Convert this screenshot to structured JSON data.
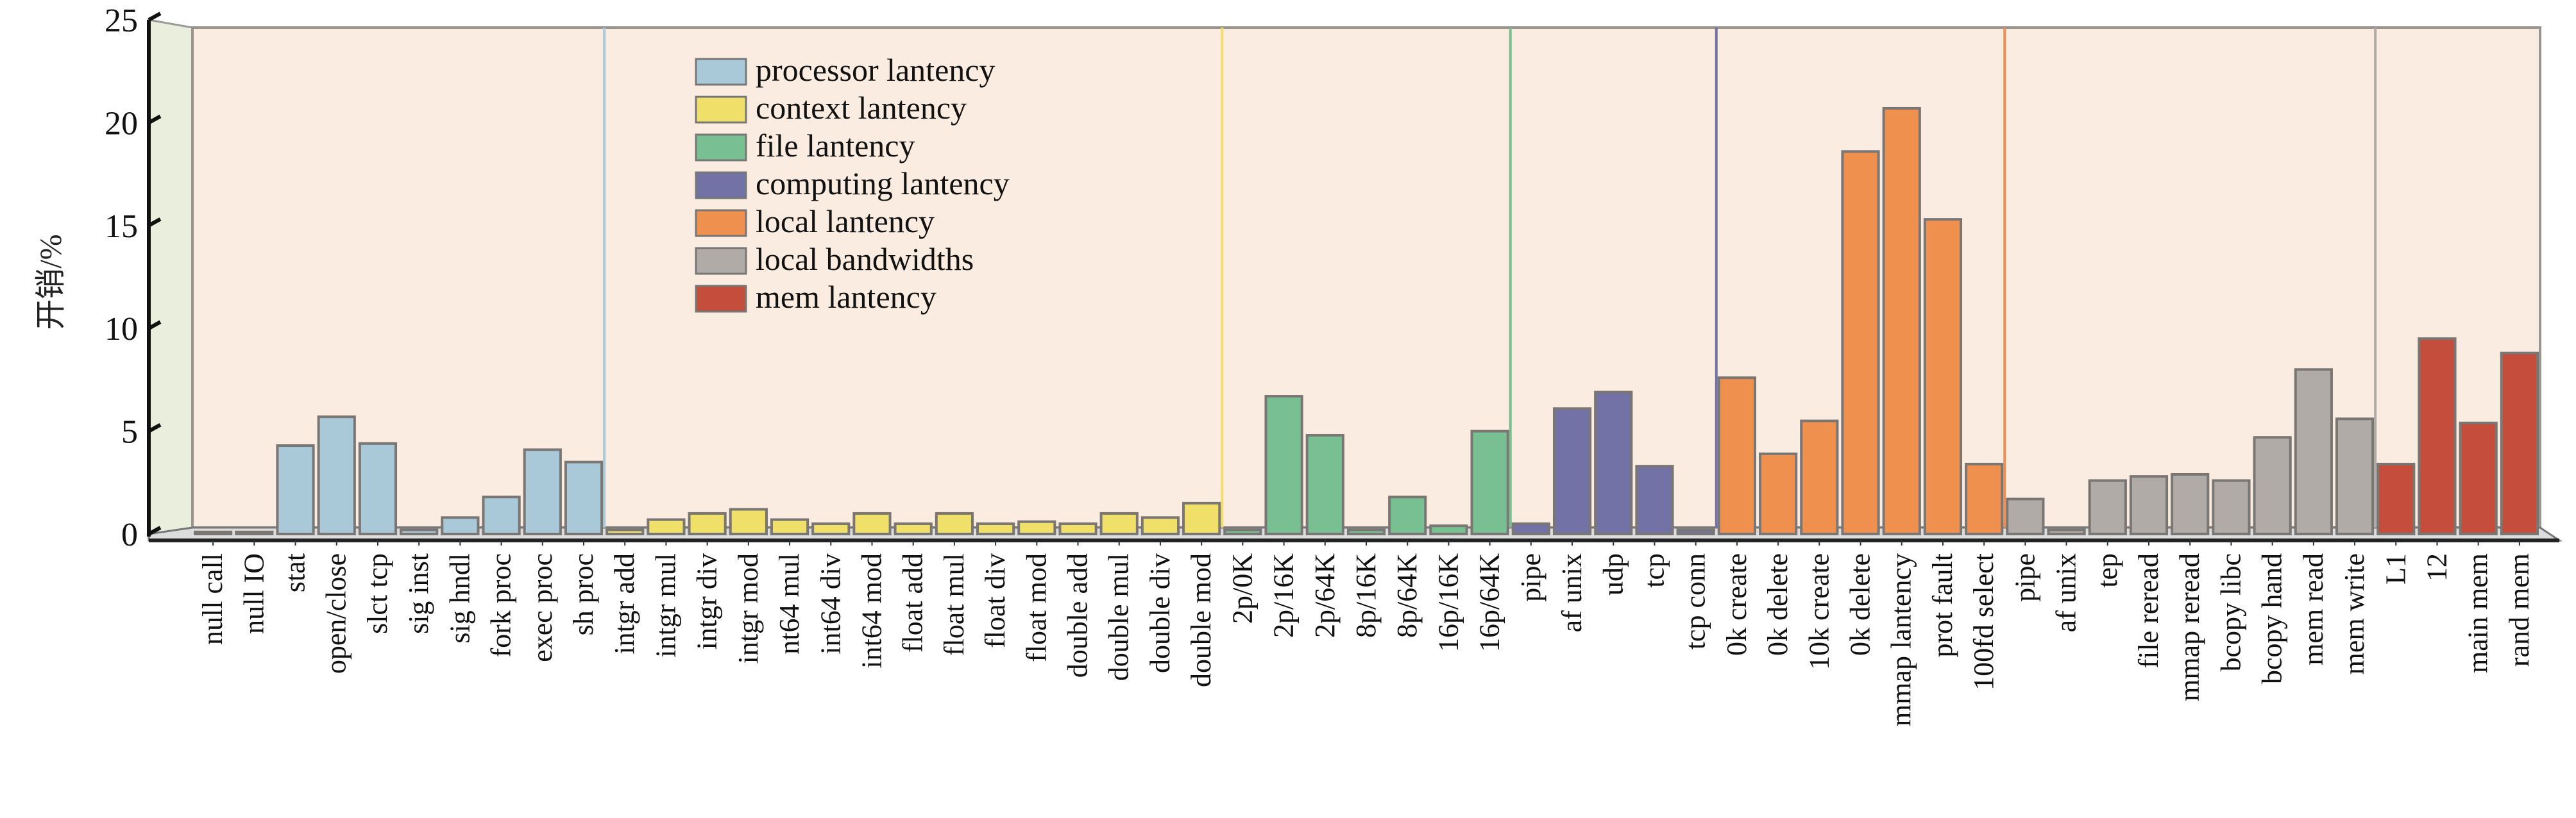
{
  "chart_data": {
    "type": "bar",
    "title": "",
    "xlabel": "",
    "ylabel": "开销/%",
    "ylim": [
      0,
      25
    ],
    "yticks": [
      "0",
      "5",
      "10",
      "15",
      "20",
      "25"
    ],
    "grid": false,
    "legend_position": "top-left-center",
    "series": [
      {
        "name": "processor lantency",
        "color": "#a9c8d8",
        "categories": [
          "null call",
          "null IO",
          "stat",
          "open/close",
          "slct tcp",
          "sig inst",
          "sig hndl",
          "fork proc",
          "exec proc",
          "sh proc"
        ],
        "values": [
          0.1,
          0.1,
          4.3,
          5.7,
          4.4,
          0.2,
          0.8,
          1.8,
          4.1,
          3.5
        ]
      },
      {
        "name": "context lantency",
        "color": "#f0e06a",
        "categories": [
          "intgr add",
          "intgr mul",
          "intgr div",
          "intgr mod",
          "nt64 mul",
          "int64 div",
          "int64 mod",
          "float add",
          "float mul",
          "float div",
          "float mod",
          "double add",
          "double mul",
          "double div",
          "double mod"
        ],
        "values": [
          0.2,
          0.7,
          1.0,
          1.2,
          0.7,
          0.5,
          1.0,
          0.5,
          1.0,
          0.5,
          0.6,
          0.5,
          1.0,
          0.8,
          1.5
        ]
      },
      {
        "name": "file lantency",
        "color": "#78bf92",
        "categories": [
          "2p/0K",
          "2p/16K",
          "2p/64K",
          "8p/16K",
          "8p/64K",
          "16p/16K",
          "16p/64K"
        ],
        "values": [
          0.2,
          6.7,
          4.8,
          0.2,
          1.8,
          0.4,
          5.0
        ]
      },
      {
        "name": "computing lantency",
        "color": "#7372a6",
        "categories": [
          "pipe",
          "af unix",
          "udp",
          "tcp",
          "tcp conn"
        ],
        "values": [
          0.5,
          6.1,
          6.9,
          3.3,
          0.2
        ]
      },
      {
        "name": "local lantency",
        "color": "#f0904f",
        "categories": [
          "0k create",
          "0k delete",
          "10k create",
          "0k delete",
          "mmap lantency",
          "prot fault",
          "100fd select"
        ],
        "values": [
          7.6,
          3.9,
          5.5,
          18.6,
          20.7,
          15.3,
          3.4
        ]
      },
      {
        "name": "local bandwidths",
        "color": "#b1aba8",
        "categories": [
          "pipe",
          "af unix",
          "tep",
          "file reread",
          "mmap reread",
          "bcopy libc",
          "bcopy hand",
          "mem read",
          "mem write"
        ],
        "values": [
          1.7,
          0.2,
          2.6,
          2.8,
          2.9,
          2.6,
          4.7,
          8.0,
          5.6
        ]
      },
      {
        "name": "mem lantency",
        "color": "#c44d3c",
        "categories": [
          "L1",
          "12",
          "main mem",
          "rand mem"
        ],
        "values": [
          3.4,
          9.5,
          5.4,
          8.8
        ]
      }
    ]
  }
}
